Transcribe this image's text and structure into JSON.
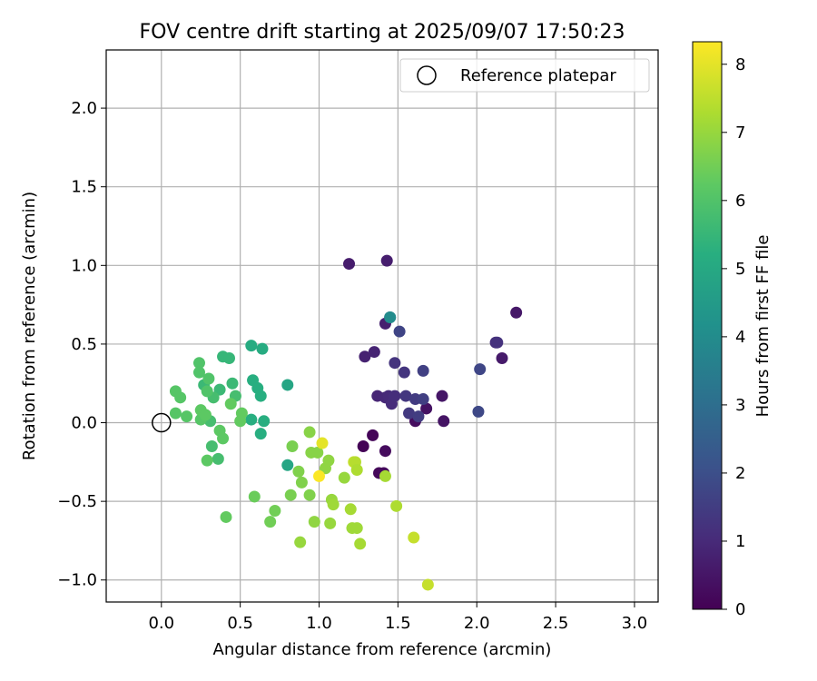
{
  "chart_data": {
    "type": "scatter",
    "title": "FOV centre drift starting at 2025/09/07 17:50:23",
    "xlabel": "Angular distance from reference (arcmin)",
    "ylabel": "Rotation from reference (arcmin)",
    "xlim": [
      -0.35,
      3.15
    ],
    "ylim": [
      -1.14,
      2.37
    ],
    "xticks": [
      0.0,
      0.5,
      1.0,
      1.5,
      2.0,
      2.5,
      3.0
    ],
    "xtick_labels": [
      "0.0",
      "0.5",
      "1.0",
      "1.5",
      "2.0",
      "2.5",
      "3.0"
    ],
    "yticks": [
      -1.0,
      -0.5,
      0.0,
      0.5,
      1.0,
      1.5,
      2.0
    ],
    "ytick_labels": [
      "−1.0",
      "−0.5",
      "0.0",
      "0.5",
      "1.0",
      "1.5",
      "2.0"
    ],
    "grid": true,
    "legend": {
      "position": "top-right",
      "entries": [
        "Reference platepar"
      ]
    },
    "reference_point": {
      "x": 0.0,
      "y": 0.0,
      "label": "Reference platepar"
    },
    "colorbar": {
      "label": "Hours from first FF file",
      "min": 0,
      "max": 8.33,
      "ticks": [
        0,
        1,
        2,
        3,
        4,
        5,
        6,
        7,
        8
      ],
      "tick_labels": [
        "0",
        "1",
        "2",
        "3",
        "4",
        "5",
        "6",
        "7",
        "8"
      ],
      "colormap": "viridis"
    },
    "points": [
      {
        "x": 1.28,
        "y": -0.15,
        "h": 0.05
      },
      {
        "x": 1.34,
        "y": -0.08,
        "h": 0.1
      },
      {
        "x": 1.38,
        "y": -0.32,
        "h": 0.15
      },
      {
        "x": 1.41,
        "y": -0.32,
        "h": 0.2
      },
      {
        "x": 1.42,
        "y": -0.18,
        "h": 0.25
      },
      {
        "x": 1.61,
        "y": 0.01,
        "h": 0.3
      },
      {
        "x": 1.68,
        "y": 0.09,
        "h": 0.4
      },
      {
        "x": 1.79,
        "y": 0.01,
        "h": 0.45
      },
      {
        "x": 1.78,
        "y": 0.17,
        "h": 0.5
      },
      {
        "x": 2.25,
        "y": 0.7,
        "h": 0.55
      },
      {
        "x": 2.16,
        "y": 0.41,
        "h": 0.6
      },
      {
        "x": 1.19,
        "y": 1.01,
        "h": 0.65
      },
      {
        "x": 1.43,
        "y": 1.03,
        "h": 0.7
      },
      {
        "x": 1.42,
        "y": 0.63,
        "h": 0.75
      },
      {
        "x": 1.29,
        "y": 0.42,
        "h": 0.8
      },
      {
        "x": 1.35,
        "y": 0.45,
        "h": 0.85
      },
      {
        "x": 1.37,
        "y": 0.17,
        "h": 0.9
      },
      {
        "x": 1.42,
        "y": 0.16,
        "h": 0.95
      },
      {
        "x": 1.44,
        "y": 0.17,
        "h": 1.0
      },
      {
        "x": 1.46,
        "y": 0.12,
        "h": 1.05
      },
      {
        "x": 1.48,
        "y": 0.17,
        "h": 1.1
      },
      {
        "x": 2.12,
        "y": 0.51,
        "h": 1.15
      },
      {
        "x": 2.13,
        "y": 0.51,
        "h": 1.2
      },
      {
        "x": 1.48,
        "y": 0.38,
        "h": 1.25
      },
      {
        "x": 1.54,
        "y": 0.32,
        "h": 1.3
      },
      {
        "x": 1.55,
        "y": 0.17,
        "h": 1.35
      },
      {
        "x": 1.57,
        "y": 0.06,
        "h": 1.4
      },
      {
        "x": 1.61,
        "y": 0.15,
        "h": 1.45
      },
      {
        "x": 1.63,
        "y": 0.04,
        "h": 1.5
      },
      {
        "x": 1.66,
        "y": 0.15,
        "h": 1.55
      },
      {
        "x": 1.66,
        "y": 0.33,
        "h": 1.6
      },
      {
        "x": 1.51,
        "y": 0.58,
        "h": 1.7
      },
      {
        "x": 2.02,
        "y": 0.34,
        "h": 1.75
      },
      {
        "x": 2.01,
        "y": 0.07,
        "h": 1.8
      },
      {
        "x": 1.45,
        "y": 0.67,
        "h": 2.8
      },
      {
        "x": 1.45,
        "y": 0.67,
        "h": 4.0
      },
      {
        "x": 0.8,
        "y": 0.24,
        "h": 4.9
      },
      {
        "x": 0.8,
        "y": -0.27,
        "h": 4.9
      },
      {
        "x": 0.57,
        "y": 0.49,
        "h": 5.1
      },
      {
        "x": 0.64,
        "y": 0.47,
        "h": 5.1
      },
      {
        "x": 0.58,
        "y": 0.27,
        "h": 5.2
      },
      {
        "x": 0.61,
        "y": 0.22,
        "h": 5.2
      },
      {
        "x": 0.63,
        "y": 0.17,
        "h": 5.2
      },
      {
        "x": 0.57,
        "y": 0.02,
        "h": 5.2
      },
      {
        "x": 0.65,
        "y": 0.01,
        "h": 5.2
      },
      {
        "x": 0.63,
        "y": -0.07,
        "h": 5.2
      },
      {
        "x": 0.39,
        "y": 0.42,
        "h": 5.5
      },
      {
        "x": 0.43,
        "y": 0.41,
        "h": 5.5
      },
      {
        "x": 0.27,
        "y": 0.24,
        "h": 5.6
      },
      {
        "x": 0.37,
        "y": 0.21,
        "h": 5.6
      },
      {
        "x": 0.45,
        "y": 0.25,
        "h": 5.6
      },
      {
        "x": 0.47,
        "y": 0.17,
        "h": 5.8
      },
      {
        "x": 0.33,
        "y": 0.16,
        "h": 5.8
      },
      {
        "x": 0.31,
        "y": 0.01,
        "h": 5.8
      },
      {
        "x": 0.32,
        "y": -0.15,
        "h": 5.8
      },
      {
        "x": 0.36,
        "y": -0.23,
        "h": 5.8
      },
      {
        "x": 0.24,
        "y": 0.38,
        "h": 6.0
      },
      {
        "x": 0.24,
        "y": 0.32,
        "h": 6.0
      },
      {
        "x": 0.3,
        "y": 0.28,
        "h": 6.0
      },
      {
        "x": 0.29,
        "y": 0.2,
        "h": 6.0
      },
      {
        "x": 0.12,
        "y": 0.16,
        "h": 6.1
      },
      {
        "x": 0.09,
        "y": 0.2,
        "h": 6.1
      },
      {
        "x": 0.09,
        "y": 0.06,
        "h": 6.1
      },
      {
        "x": 0.16,
        "y": 0.04,
        "h": 6.1
      },
      {
        "x": 0.25,
        "y": 0.02,
        "h": 6.1
      },
      {
        "x": 0.25,
        "y": 0.08,
        "h": 6.2
      },
      {
        "x": 0.28,
        "y": 0.05,
        "h": 6.2
      },
      {
        "x": 0.37,
        "y": -0.05,
        "h": 6.2
      },
      {
        "x": 0.39,
        "y": -0.1,
        "h": 6.2
      },
      {
        "x": 0.29,
        "y": -0.24,
        "h": 6.2
      },
      {
        "x": 0.44,
        "y": 0.12,
        "h": 6.3
      },
      {
        "x": 0.51,
        "y": 0.06,
        "h": 6.3
      },
      {
        "x": 0.5,
        "y": 0.01,
        "h": 6.3
      },
      {
        "x": 0.41,
        "y": -0.6,
        "h": 6.3
      },
      {
        "x": 0.59,
        "y": -0.47,
        "h": 6.4
      },
      {
        "x": 0.69,
        "y": -0.63,
        "h": 6.5
      },
      {
        "x": 0.72,
        "y": -0.56,
        "h": 6.5
      },
      {
        "x": 0.83,
        "y": -0.15,
        "h": 6.6
      },
      {
        "x": 0.82,
        "y": -0.46,
        "h": 6.6
      },
      {
        "x": 0.87,
        "y": -0.31,
        "h": 6.7
      },
      {
        "x": 0.89,
        "y": -0.38,
        "h": 6.7
      },
      {
        "x": 0.94,
        "y": -0.46,
        "h": 6.7
      },
      {
        "x": 0.94,
        "y": -0.06,
        "h": 6.8
      },
      {
        "x": 0.95,
        "y": -0.19,
        "h": 6.8
      },
      {
        "x": 0.99,
        "y": -0.19,
        "h": 6.8
      },
      {
        "x": 0.97,
        "y": -0.63,
        "h": 6.9
      },
      {
        "x": 0.88,
        "y": -0.76,
        "h": 7.0
      },
      {
        "x": 1.04,
        "y": -0.29,
        "h": 6.9
      },
      {
        "x": 1.06,
        "y": -0.24,
        "h": 6.9
      },
      {
        "x": 1.07,
        "y": -0.64,
        "h": 7.0
      },
      {
        "x": 1.08,
        "y": -0.49,
        "h": 7.0
      },
      {
        "x": 1.09,
        "y": -0.52,
        "h": 7.1
      },
      {
        "x": 1.16,
        "y": -0.35,
        "h": 7.0
      },
      {
        "x": 1.2,
        "y": -0.55,
        "h": 7.2
      },
      {
        "x": 1.21,
        "y": -0.67,
        "h": 7.1
      },
      {
        "x": 1.24,
        "y": -0.67,
        "h": 7.1
      },
      {
        "x": 1.26,
        "y": -0.77,
        "h": 7.2
      },
      {
        "x": 1.22,
        "y": -0.25,
        "h": 7.6
      },
      {
        "x": 1.23,
        "y": -0.25,
        "h": 7.4
      },
      {
        "x": 1.24,
        "y": -0.3,
        "h": 7.3
      },
      {
        "x": 1.42,
        "y": -0.34,
        "h": 7.2
      },
      {
        "x": 1.49,
        "y": -0.53,
        "h": 7.3
      },
      {
        "x": 1.6,
        "y": -0.73,
        "h": 7.6
      },
      {
        "x": 1.69,
        "y": -1.03,
        "h": 7.6
      },
      {
        "x": 1.02,
        "y": -0.13,
        "h": 8.0
      },
      {
        "x": 1.0,
        "y": -0.34,
        "h": 8.3
      }
    ]
  }
}
